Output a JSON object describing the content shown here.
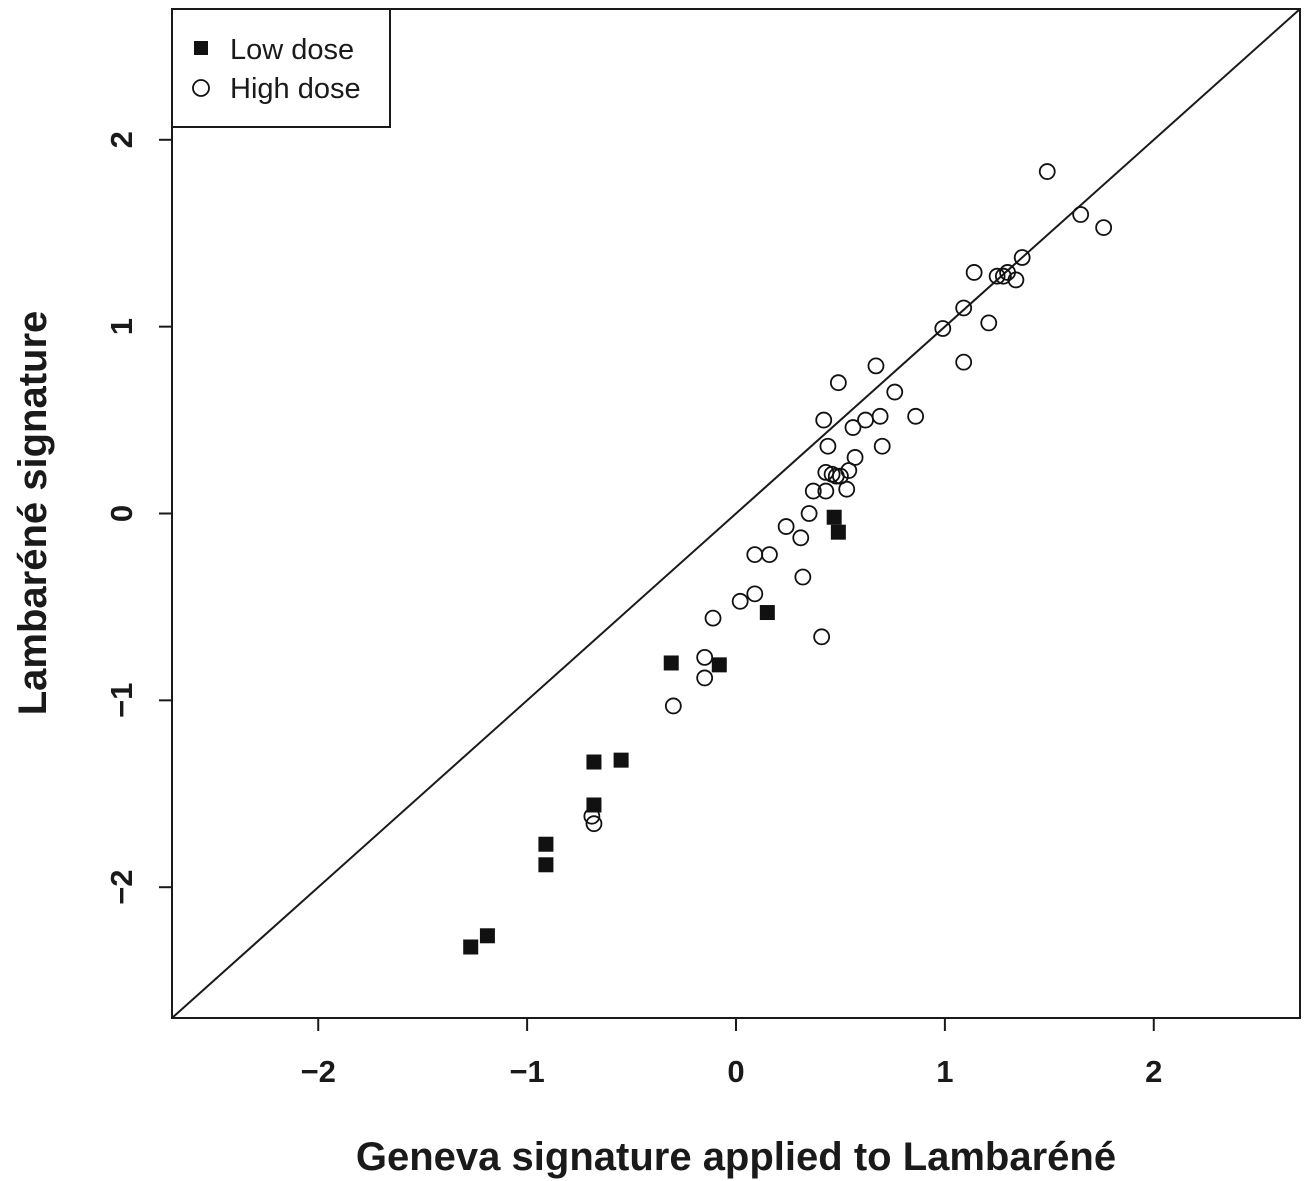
{
  "chart_data": {
    "type": "scatter",
    "xlabel": "Geneva signature applied to Lambaréné",
    "ylabel": "Lambaréné signature",
    "xlim": [
      -2.7,
      2.7
    ],
    "ylim": [
      -2.7,
      2.7
    ],
    "xticks": [
      -2,
      -1,
      0,
      1,
      2
    ],
    "yticks": [
      -2,
      -1,
      0,
      1,
      2
    ],
    "xtick_labels": [
      "−2",
      "−1",
      "0",
      "1",
      "2"
    ],
    "ytick_labels": [
      "−2",
      "−1",
      "0",
      "1",
      "2"
    ],
    "grid": false,
    "legend_position": "top-left",
    "reference_line": {
      "type": "identity",
      "slope": 1,
      "intercept": 0
    },
    "series": [
      {
        "name": "Low dose",
        "marker": "filled-square",
        "points": [
          [
            -1.27,
            -2.32
          ],
          [
            -1.19,
            -2.26
          ],
          [
            -0.91,
            -1.77
          ],
          [
            -0.91,
            -1.88
          ],
          [
            -0.68,
            -1.56
          ],
          [
            -0.68,
            -1.33
          ],
          [
            -0.55,
            -1.32
          ],
          [
            -0.31,
            -0.8
          ],
          [
            -0.08,
            -0.81
          ],
          [
            0.15,
            -0.53
          ],
          [
            0.47,
            -0.02
          ],
          [
            0.49,
            -0.1
          ]
        ]
      },
      {
        "name": "High dose",
        "marker": "open-circle",
        "points": [
          [
            -0.69,
            -1.62
          ],
          [
            -0.68,
            -1.66
          ],
          [
            -0.3,
            -1.03
          ],
          [
            -0.15,
            -0.77
          ],
          [
            -0.15,
            -0.88
          ],
          [
            -0.11,
            -0.56
          ],
          [
            0.02,
            -0.47
          ],
          [
            0.09,
            -0.43
          ],
          [
            0.09,
            -0.22
          ],
          [
            0.16,
            -0.22
          ],
          [
            0.24,
            -0.07
          ],
          [
            0.31,
            -0.13
          ],
          [
            0.32,
            -0.34
          ],
          [
            0.35,
            0.0
          ],
          [
            0.37,
            0.12
          ],
          [
            0.41,
            -0.66
          ],
          [
            0.42,
            0.5
          ],
          [
            0.43,
            0.12
          ],
          [
            0.43,
            0.22
          ],
          [
            0.44,
            0.36
          ],
          [
            0.46,
            0.21
          ],
          [
            0.48,
            0.2
          ],
          [
            0.49,
            0.7
          ],
          [
            0.5,
            0.2
          ],
          [
            0.53,
            0.13
          ],
          [
            0.54,
            0.23
          ],
          [
            0.56,
            0.46
          ],
          [
            0.57,
            0.3
          ],
          [
            0.62,
            0.5
          ],
          [
            0.67,
            0.79
          ],
          [
            0.69,
            0.52
          ],
          [
            0.7,
            0.36
          ],
          [
            0.76,
            0.65
          ],
          [
            0.86,
            0.52
          ],
          [
            0.99,
            0.99
          ],
          [
            1.09,
            1.1
          ],
          [
            1.09,
            0.81
          ],
          [
            1.14,
            1.29
          ],
          [
            1.21,
            1.02
          ],
          [
            1.25,
            1.27
          ],
          [
            1.28,
            1.27
          ],
          [
            1.3,
            1.29
          ],
          [
            1.34,
            1.25
          ],
          [
            1.37,
            1.37
          ],
          [
            1.49,
            1.83
          ],
          [
            1.65,
            1.6
          ],
          [
            1.76,
            1.53
          ]
        ]
      }
    ]
  }
}
